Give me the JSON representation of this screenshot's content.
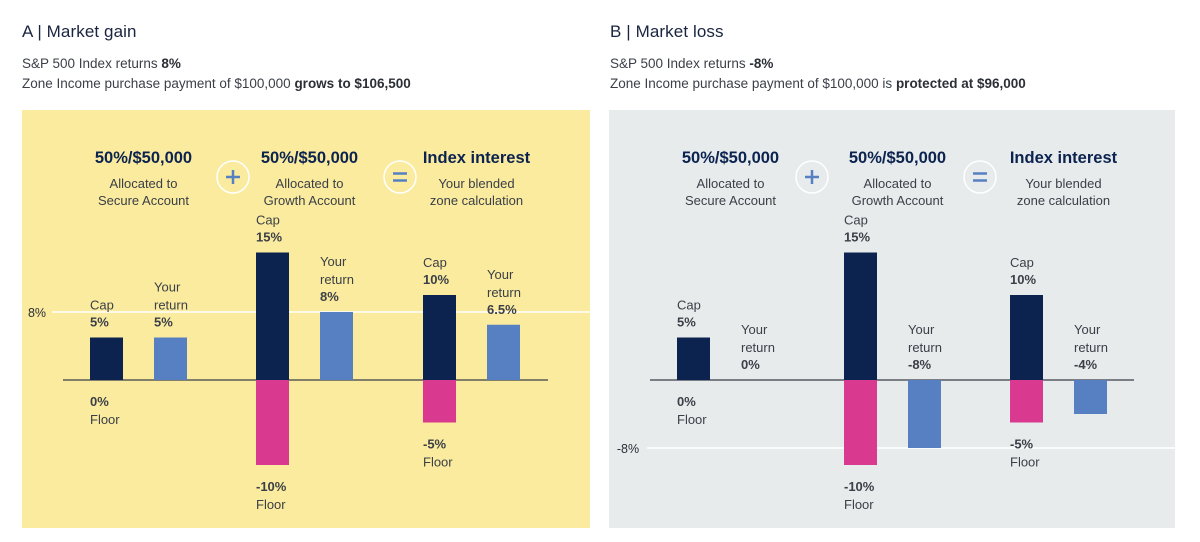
{
  "colors": {
    "bg_gain": "#faeb9e",
    "bg_loss": "#e7ebec",
    "navy": "#0c2350",
    "blue": "#5680c2",
    "pink": "#d93a8f",
    "text": "#3b3f47",
    "sign_bg_gain": "#faeb9e",
    "sign_bg_loss": "#e7ebec",
    "sign_fg": "#5680c2"
  },
  "icons": {
    "plus": "plus-icon",
    "equals": "equals-icon"
  },
  "panels": [
    {
      "title": "A | Market gain",
      "line1_prefix": "S&P 500 Index returns ",
      "line1_value": "8%",
      "line2_prefix": "Zone Income purchase payment of $100,000 ",
      "line2_bold": "grows to $106,500"
    },
    {
      "title": "B | Market loss",
      "line1_prefix": "S&P 500 Index returns ",
      "line1_value": "-8%",
      "line2_prefix": "Zone Income purchase payment of $100,000 is ",
      "line2_bold": "protected at $96,000"
    }
  ],
  "chart_data": [
    {
      "type": "bar",
      "title": "A | Market gain",
      "index_return": 8,
      "index_return_label": "8%",
      "ylim": [
        -10,
        15
      ],
      "groups": [
        {
          "heading": "50%/$50,000",
          "sub": [
            "Allocated to",
            "Secure Account"
          ],
          "sign_after": "+",
          "cap": 5,
          "floor": 0,
          "your_return": 5,
          "cap_label": [
            "Cap",
            "5%"
          ],
          "floor_label": [
            "0%",
            "Floor"
          ],
          "return_label": [
            "Your",
            "return",
            "5%"
          ]
        },
        {
          "heading": "50%/$50,000",
          "sub": [
            "Allocated to",
            "Growth Account"
          ],
          "sign_after": "=",
          "cap": 15,
          "floor": -10,
          "your_return": 8,
          "cap_label": [
            "Cap",
            "15%"
          ],
          "floor_label": [
            "-10%",
            "Floor"
          ],
          "return_label": [
            "Your",
            "return",
            "8%"
          ]
        },
        {
          "heading": "Index interest",
          "sub": [
            "Your blended",
            "zone calculation"
          ],
          "sign_after": null,
          "cap": 10,
          "floor": -5,
          "your_return": 6.5,
          "cap_label": [
            "Cap",
            "10%"
          ],
          "floor_label": [
            "-5%",
            "Floor"
          ],
          "return_label": [
            "Your",
            "return",
            "6.5%"
          ]
        }
      ]
    },
    {
      "type": "bar",
      "title": "B | Market loss",
      "index_return": -8,
      "index_return_label": "-8%",
      "ylim": [
        -10,
        15
      ],
      "groups": [
        {
          "heading": "50%/$50,000",
          "sub": [
            "Allocated to",
            "Secure Account"
          ],
          "sign_after": "+",
          "cap": 5,
          "floor": 0,
          "your_return": 0,
          "cap_label": [
            "Cap",
            "5%"
          ],
          "floor_label": [
            "0%",
            "Floor"
          ],
          "return_label": [
            "Your",
            "return",
            "0%"
          ]
        },
        {
          "heading": "50%/$50,000",
          "sub": [
            "Allocated to",
            "Growth Account"
          ],
          "sign_after": "=",
          "cap": 15,
          "floor": -10,
          "your_return": -8,
          "cap_label": [
            "Cap",
            "15%"
          ],
          "floor_label": [
            "-10%",
            "Floor"
          ],
          "return_label": [
            "Your",
            "return",
            "-8%"
          ]
        },
        {
          "heading": "Index interest",
          "sub": [
            "Your blended",
            "zone calculation"
          ],
          "sign_after": null,
          "cap": 10,
          "floor": -5,
          "your_return": -4,
          "cap_label": [
            "Cap",
            "10%"
          ],
          "floor_label": [
            "-5%",
            "Floor"
          ],
          "return_label": [
            "Your",
            "return",
            "-4%"
          ]
        }
      ]
    }
  ]
}
